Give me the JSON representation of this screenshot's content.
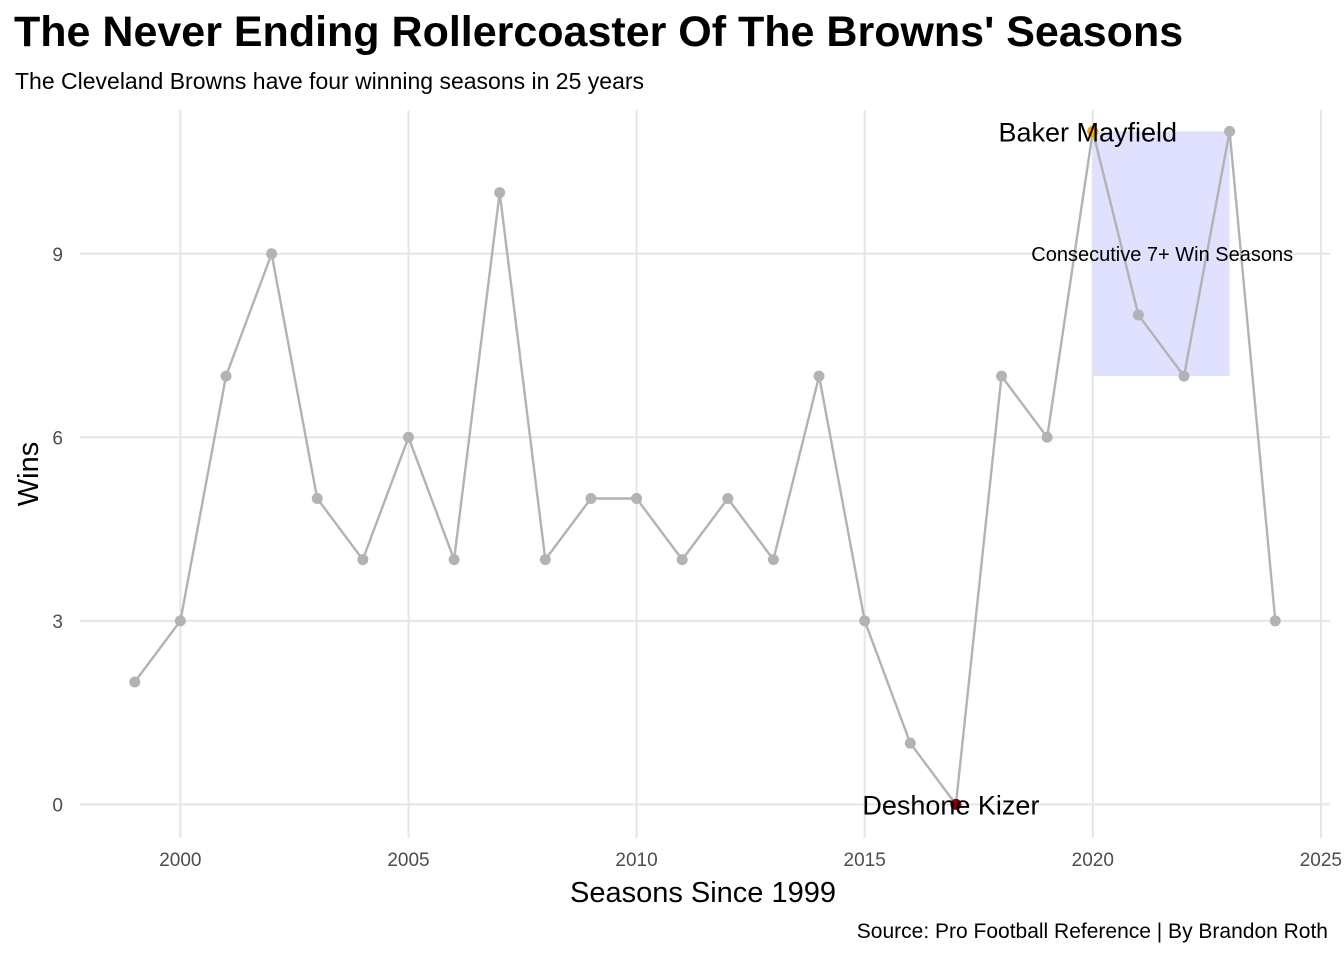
{
  "title": "The Never Ending Rollercoaster Of The Browns' Seasons",
  "subtitle": "The Cleveland Browns have four winning seasons in 25 years",
  "caption": "Source: Pro Football Reference | By Brandon Roth",
  "colors": {
    "line": "#b3b3b3",
    "point": "#b3b3b3",
    "grid": "#e5e5e5",
    "highlight_rect": "#e0e0ff",
    "best_point": "#ffa500",
    "worst_point": "#8b0000"
  },
  "chart_data": {
    "type": "line",
    "xlabel": "Seasons Since 1999",
    "ylabel": "Wins",
    "xlim": [
      1997.8,
      2025.2
    ],
    "ylim": [
      -0.55,
      11.35
    ],
    "x_ticks": [
      2000,
      2005,
      2010,
      2015,
      2020,
      2025
    ],
    "y_ticks": [
      0,
      3,
      6,
      9
    ],
    "grid": true,
    "x": [
      1999,
      2000,
      2001,
      2002,
      2003,
      2004,
      2005,
      2006,
      2007,
      2008,
      2009,
      2010,
      2011,
      2012,
      2013,
      2014,
      2015,
      2016,
      2017,
      2018,
      2019,
      2020,
      2021,
      2022,
      2023,
      2024
    ],
    "y": [
      2,
      3,
      7,
      9,
      5,
      4,
      6,
      4,
      10,
      4,
      5,
      5,
      4,
      5,
      4,
      7,
      3,
      1,
      0,
      7,
      6,
      11,
      8,
      7,
      11,
      3
    ],
    "highlights": [
      {
        "x": 2020,
        "y": 11,
        "label": "Baker Mayfield",
        "color": "#ffa500"
      },
      {
        "x": 2017,
        "y": 0,
        "label": "Deshone Kizer",
        "color": "#8b0000"
      }
    ],
    "shaded_region": {
      "xmin": 2020,
      "xmax": 2023,
      "ymin": 7,
      "ymax": 11,
      "label": "Consecutive 7+ Win Seasons",
      "label_x": 2021.5,
      "label_y": 9
    }
  }
}
